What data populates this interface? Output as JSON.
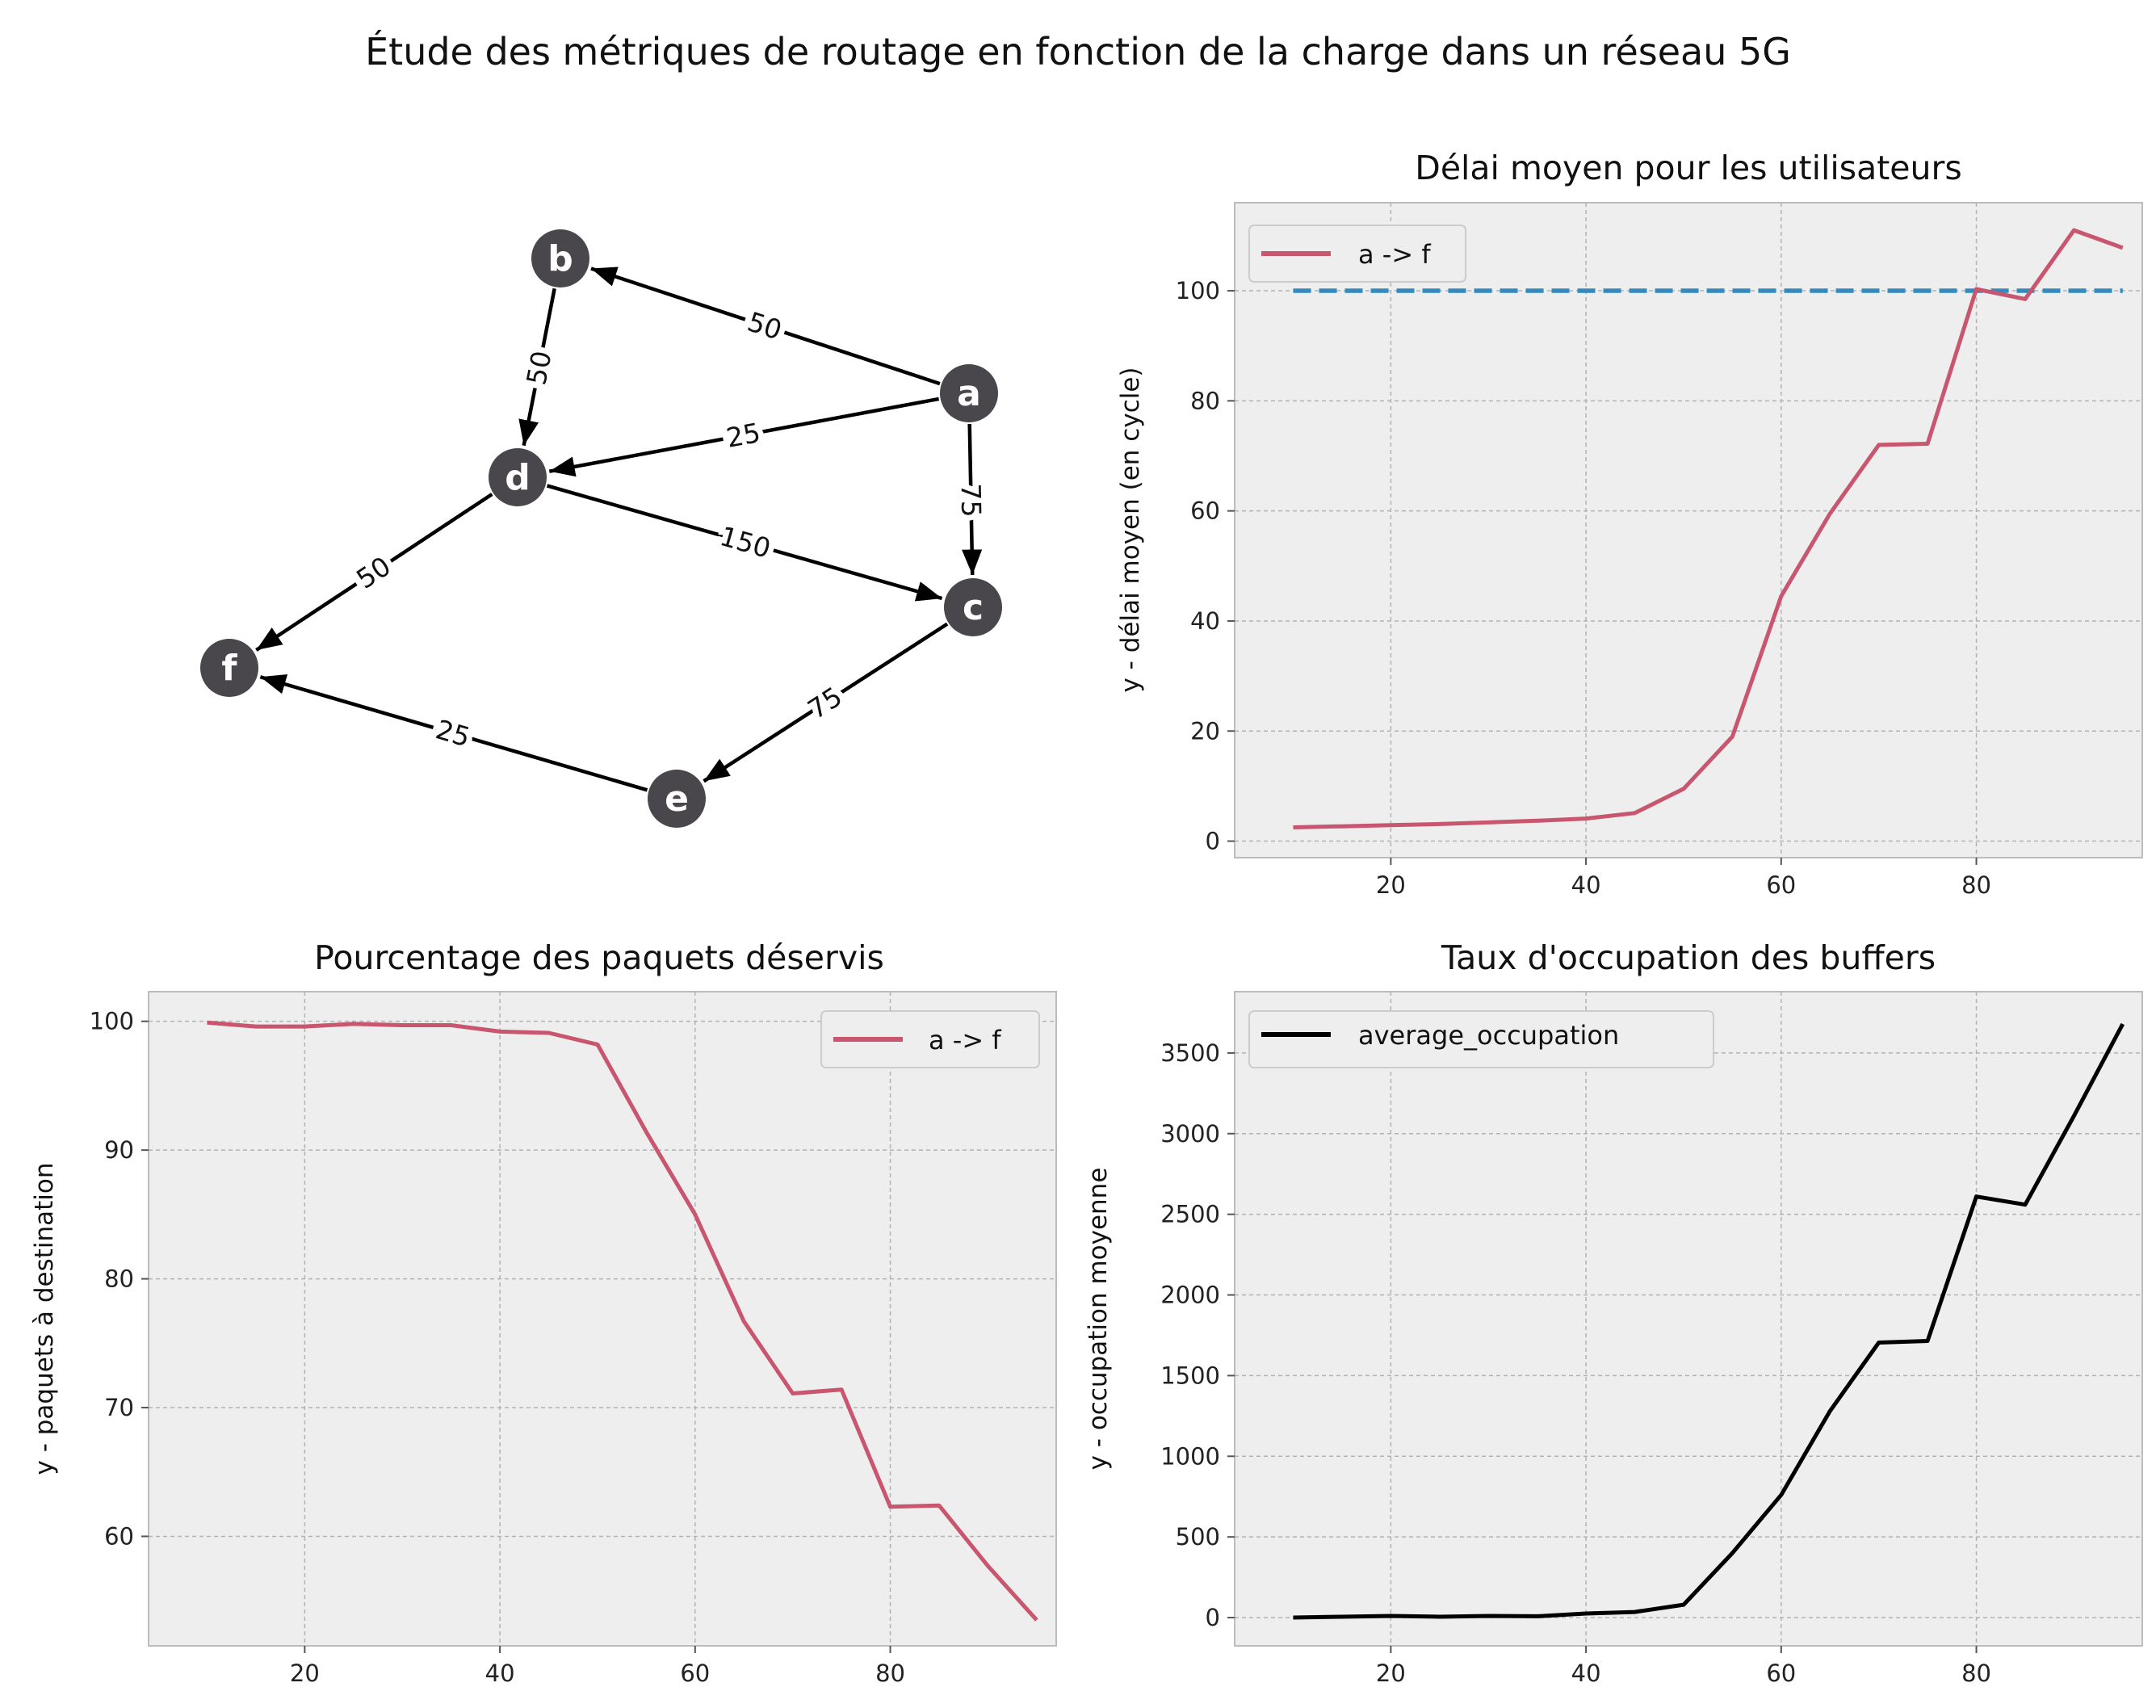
{
  "figure": {
    "title": "Étude des métriques de routage en fonction de la charge dans un réseau 5G"
  },
  "graph": {
    "nodes": [
      "a",
      "b",
      "c",
      "d",
      "e",
      "f"
    ],
    "edges": [
      {
        "from": "a",
        "to": "b",
        "weight": "50"
      },
      {
        "from": "a",
        "to": "d",
        "weight": "25"
      },
      {
        "from": "a",
        "to": "c",
        "weight": "75"
      },
      {
        "from": "b",
        "to": "d",
        "weight": "50"
      },
      {
        "from": "d",
        "to": "c",
        "weight": "150"
      },
      {
        "from": "d",
        "to": "f",
        "weight": "50"
      },
      {
        "from": "c",
        "to": "e",
        "weight": "75"
      },
      {
        "from": "e",
        "to": "f",
        "weight": "25"
      }
    ],
    "node_color": "#4a474c"
  },
  "chart_data": [
    {
      "type": "line",
      "title": "Délai moyen pour les utilisateurs",
      "xlabel": "",
      "ylabel": "y - délai moyen (en cycle)",
      "xlim": [
        4,
        97
      ],
      "ylim": [
        -3,
        116
      ],
      "xticks": [
        20,
        40,
        60,
        80
      ],
      "yticks": [
        0,
        20,
        40,
        60,
        80,
        100
      ],
      "grid": true,
      "legend": "upper left",
      "x": [
        10,
        15,
        20,
        25,
        30,
        35,
        40,
        45,
        50,
        55,
        60,
        65,
        70,
        75,
        80,
        85,
        90,
        95
      ],
      "series": [
        {
          "name": "a -> f",
          "color": "#c8566f",
          "values": [
            2.5,
            2.7,
            2.9,
            3.1,
            3.4,
            3.7,
            4.1,
            5.1,
            9.5,
            19,
            44.5,
            59.5,
            72,
            72.2,
            100.3,
            98.5,
            111,
            107.8
          ]
        }
      ],
      "reference_line": {
        "y": 100,
        "x_from": 10,
        "x_to": 95,
        "color": "#348abd",
        "style": "dashed"
      }
    },
    {
      "type": "line",
      "title": "Pourcentage des paquets déservis",
      "xlabel": "",
      "ylabel": "y - paquets à destination",
      "xlim": [
        4,
        97
      ],
      "ylim": [
        51.5,
        102.3
      ],
      "xticks": [
        20,
        40,
        60,
        80
      ],
      "yticks": [
        60,
        70,
        80,
        90,
        100
      ],
      "grid": true,
      "legend": "upper right",
      "x": [
        10,
        15,
        20,
        25,
        30,
        35,
        40,
        45,
        50,
        55,
        60,
        65,
        70,
        75,
        80,
        85,
        90,
        95
      ],
      "series": [
        {
          "name": "a -> f",
          "color": "#c8566f",
          "values": [
            99.9,
            99.6,
            99.6,
            99.8,
            99.7,
            99.7,
            99.2,
            99.1,
            98.2,
            91.4,
            85,
            76.7,
            71.1,
            71.4,
            62.3,
            62.4,
            57.7,
            53.5
          ]
        }
      ]
    },
    {
      "type": "line",
      "title": "Taux d'occupation des buffers",
      "xlabel": "",
      "ylabel": "y - occupation moyenne",
      "xlim": [
        4,
        97
      ],
      "ylim": [
        -175,
        3880
      ],
      "xticks": [
        20,
        40,
        60,
        80
      ],
      "yticks": [
        0,
        500,
        1000,
        1500,
        2000,
        2500,
        3000,
        3500
      ],
      "grid": true,
      "legend": "upper left",
      "x": [
        10,
        15,
        20,
        25,
        30,
        35,
        40,
        45,
        50,
        55,
        60,
        65,
        70,
        75,
        80,
        85,
        90,
        95
      ],
      "series": [
        {
          "name": "average_occupation",
          "color": "#000000",
          "values": [
            0,
            5,
            10,
            5,
            10,
            8,
            25,
            35,
            80,
            400,
            760,
            1280,
            1705,
            1715,
            2610,
            2560,
            3110,
            3680
          ]
        }
      ]
    }
  ]
}
